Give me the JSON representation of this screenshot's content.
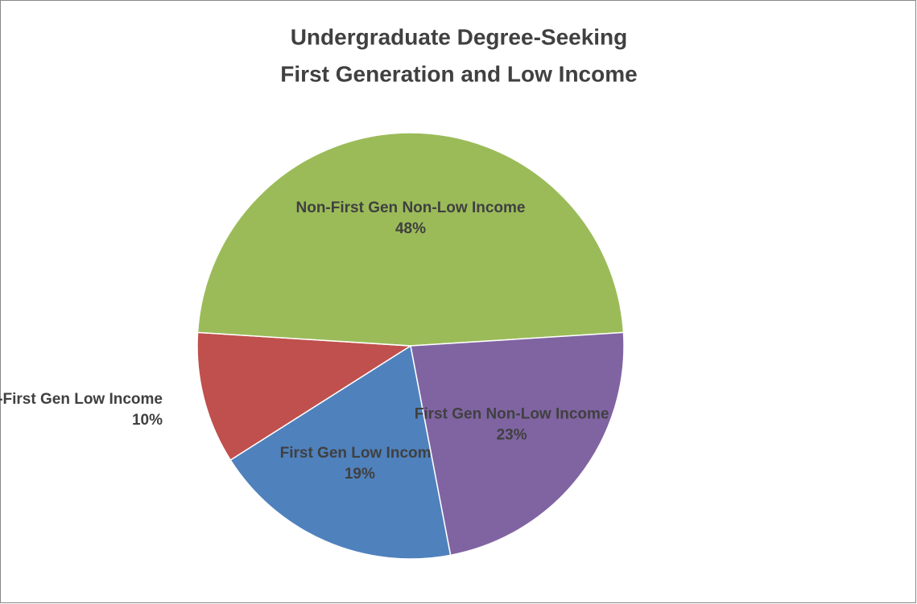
{
  "chart_data": {
    "type": "pie",
    "title": [
      "Undergraduate Degree-Seeking",
      "First Generation and Low Income"
    ],
    "categories": [
      "First Gen Low Income",
      "Non-First Gen Low Income",
      "Non-First Gen Non-Low Income",
      "First Gen Non-Low Income"
    ],
    "values": [
      19,
      10,
      48,
      23
    ],
    "value_labels": [
      "19%",
      "10%",
      "48%",
      "23%"
    ],
    "colors": [
      "#4f81bd",
      "#c0504d",
      "#9bbb59",
      "#8064a2"
    ]
  }
}
